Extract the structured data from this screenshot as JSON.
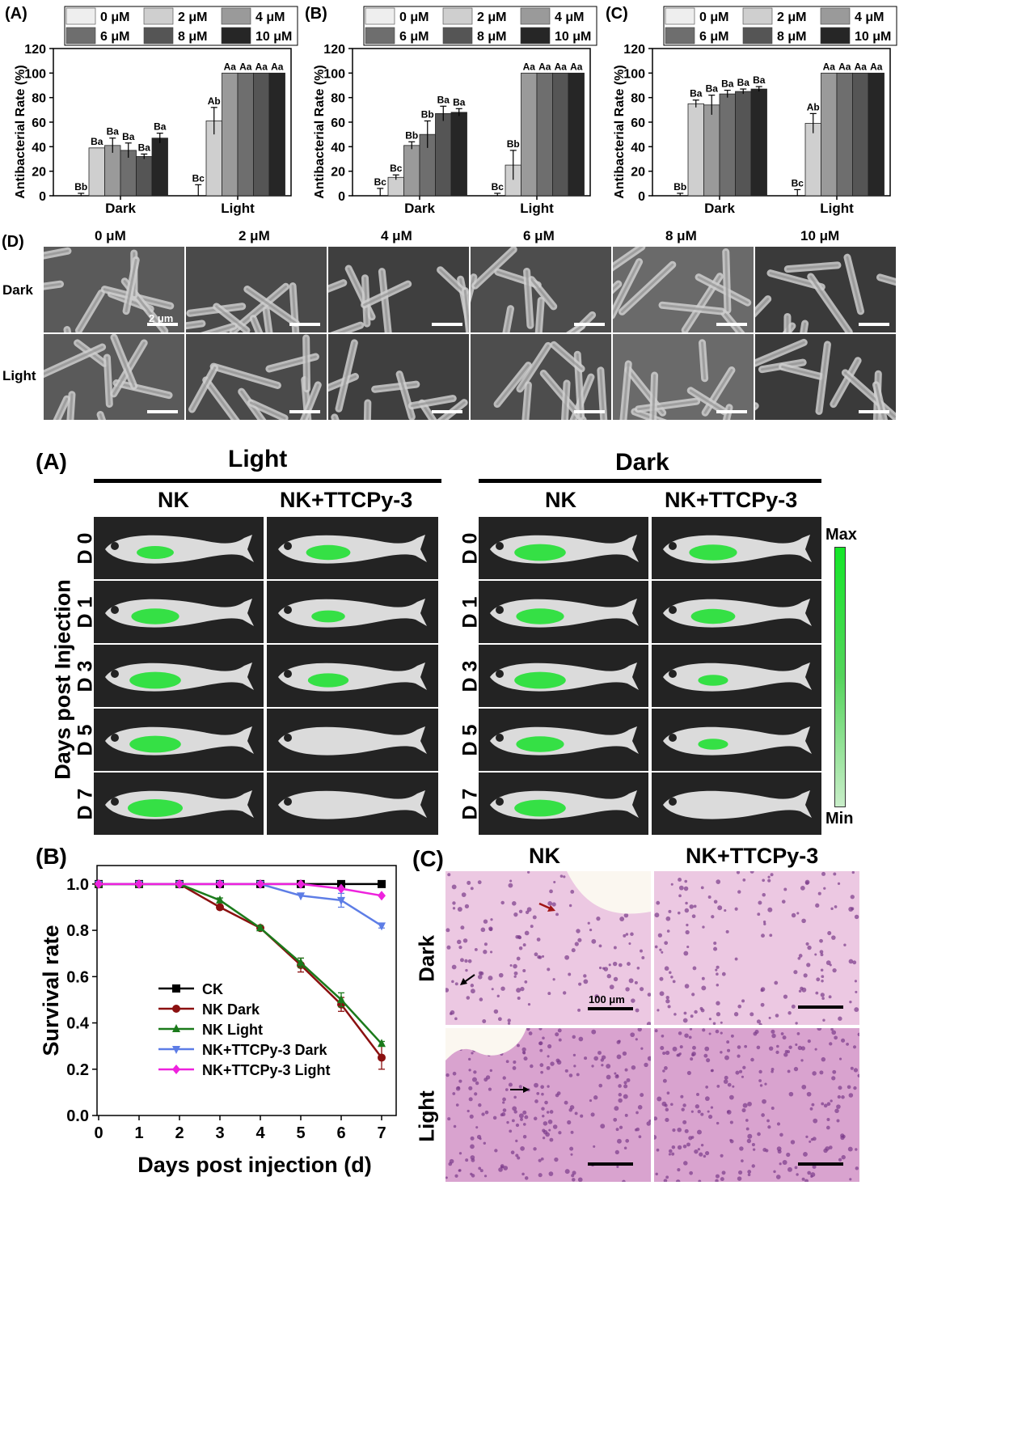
{
  "figure1": {
    "panels": [
      {
        "letter": "(A)"
      },
      {
        "letter": "(B)"
      },
      {
        "letter": "(C)"
      }
    ],
    "legend": [
      "0 μM",
      "2 μM",
      "4 μM",
      "6 μM",
      "8 μM",
      "10 μM"
    ],
    "sem": {
      "letter": "(D)",
      "columns": [
        "0 μM",
        "2 μM",
        "4 μM",
        "6 μM",
        "8 μM",
        "10 μM"
      ],
      "rows": [
        "Dark",
        "Light"
      ],
      "scale_label": "2 μm"
    }
  },
  "figure2": {
    "fish": {
      "letter": "(A)",
      "groups": [
        "Light",
        "Dark"
      ],
      "columns": [
        "NK",
        "NK+TTCPy-3",
        "NK",
        "NK+TTCPy-3"
      ],
      "rows": [
        "D 0",
        "D 1",
        "D 3",
        "D 5",
        "D 7"
      ],
      "ylabel": "Days post Injection",
      "colorbar_max": "Max",
      "colorbar_min": "Min",
      "color": "#18e02a"
    },
    "histo": {
      "letter": "(C)",
      "columns": [
        "NK",
        "NK+TTCPy-3"
      ],
      "rows": [
        "Dark",
        "Light"
      ],
      "scale_label": "100 μm"
    }
  },
  "chart_data": [
    {
      "type": "bar",
      "panel": "(A)",
      "categories": [
        "Dark",
        "Light"
      ],
      "ylabel": "Antibacterial Rate (%)",
      "ylim": [
        0,
        120
      ],
      "yticks": [
        0,
        20,
        40,
        60,
        80,
        100,
        120
      ],
      "legend_position": "top",
      "series": [
        {
          "name": "0 μM",
          "values": [
            0,
            0
          ],
          "errors": [
            2,
            9
          ],
          "labels": [
            "Bb",
            "Bc"
          ],
          "color": "#eeeeee"
        },
        {
          "name": "2 μM",
          "values": [
            39,
            61
          ],
          "errors": [
            0,
            11
          ],
          "labels": [
            "Ba",
            "Ab"
          ],
          "color": "#cfcfcf"
        },
        {
          "name": "4 μM",
          "values": [
            41,
            100
          ],
          "errors": [
            6,
            0
          ],
          "labels": [
            "Ba",
            "Aa"
          ],
          "color": "#9a9a9a"
        },
        {
          "name": "6 μM",
          "values": [
            37,
            100
          ],
          "errors": [
            6,
            0
          ],
          "labels": [
            "Ba",
            "Aa"
          ],
          "color": "#6e6e6e"
        },
        {
          "name": "8 μM",
          "values": [
            32,
            100
          ],
          "errors": [
            2,
            0
          ],
          "labels": [
            "Ba",
            "Aa"
          ],
          "color": "#555555"
        },
        {
          "name": "10 μM",
          "values": [
            47,
            100
          ],
          "errors": [
            4,
            0
          ],
          "labels": [
            "Ba",
            "Aa"
          ],
          "color": "#262626"
        }
      ]
    },
    {
      "type": "bar",
      "panel": "(B)",
      "categories": [
        "Dark",
        "Light"
      ],
      "ylabel": "Antibacterial Rate (%)",
      "ylim": [
        0,
        120
      ],
      "yticks": [
        0,
        20,
        40,
        60,
        80,
        100,
        120
      ],
      "legend_position": "top",
      "series": [
        {
          "name": "0 μM",
          "values": [
            0,
            0
          ],
          "errors": [
            6,
            2
          ],
          "labels": [
            "Bc",
            "Bc"
          ],
          "color": "#eeeeee"
        },
        {
          "name": "2 μM",
          "values": [
            15,
            25
          ],
          "errors": [
            2,
            12
          ],
          "labels": [
            "Bc",
            "Bb"
          ],
          "color": "#cfcfcf"
        },
        {
          "name": "4 μM",
          "values": [
            41,
            100
          ],
          "errors": [
            3,
            0
          ],
          "labels": [
            "Bb",
            "Aa"
          ],
          "color": "#9a9a9a"
        },
        {
          "name": "6 μM",
          "values": [
            50,
            100
          ],
          "errors": [
            11,
            0
          ],
          "labels": [
            "Bb",
            "Aa"
          ],
          "color": "#6e6e6e"
        },
        {
          "name": "8 μM",
          "values": [
            67,
            100
          ],
          "errors": [
            6,
            0
          ],
          "labels": [
            "Ba",
            "Aa"
          ],
          "color": "#555555"
        },
        {
          "name": "10 μM",
          "values": [
            68,
            100
          ],
          "errors": [
            3,
            0
          ],
          "labels": [
            "Ba",
            "Aa"
          ],
          "color": "#262626"
        }
      ]
    },
    {
      "type": "bar",
      "panel": "(C)",
      "categories": [
        "Dark",
        "Light"
      ],
      "ylabel": "Antibacterial Rate (%)",
      "ylim": [
        0,
        120
      ],
      "yticks": [
        0,
        20,
        40,
        60,
        80,
        100,
        120
      ],
      "legend_position": "top",
      "series": [
        {
          "name": "0 μM",
          "values": [
            0,
            0
          ],
          "errors": [
            2,
            5
          ],
          "labels": [
            "Bb",
            "Bc"
          ],
          "color": "#eeeeee"
        },
        {
          "name": "2 μM",
          "values": [
            75,
            59
          ],
          "errors": [
            3,
            8
          ],
          "labels": [
            "Ba",
            "Ab"
          ],
          "color": "#cfcfcf"
        },
        {
          "name": "4 μM",
          "values": [
            74,
            100
          ],
          "errors": [
            8,
            0
          ],
          "labels": [
            "Ba",
            "Aa"
          ],
          "color": "#9a9a9a"
        },
        {
          "name": "6 μM",
          "values": [
            83,
            100
          ],
          "errors": [
            3,
            0
          ],
          "labels": [
            "Ba",
            "Aa"
          ],
          "color": "#6e6e6e"
        },
        {
          "name": "8 μM",
          "values": [
            85,
            100
          ],
          "errors": [
            2,
            0
          ],
          "labels": [
            "Ba",
            "Aa"
          ],
          "color": "#555555"
        },
        {
          "name": "10 μM",
          "values": [
            87,
            100
          ],
          "errors": [
            2,
            0
          ],
          "labels": [
            "Ba",
            "Aa"
          ],
          "color": "#262626"
        }
      ]
    },
    {
      "type": "line",
      "panel": "(B)",
      "xlabel": "Days post injection (d)",
      "ylabel": "Survival rate",
      "x": [
        0,
        1,
        2,
        3,
        4,
        5,
        6,
        7
      ],
      "xlim": [
        0,
        7.4
      ],
      "ylim": [
        0,
        1.08
      ],
      "yticks": [
        "0.0",
        "0.2",
        "0.4",
        "0.6",
        "0.8",
        "1.0"
      ],
      "legend_position": "bottom-left",
      "series": [
        {
          "name": "CK",
          "values": [
            1,
            1,
            1,
            1,
            1,
            1,
            1,
            1
          ],
          "errors": [
            0,
            0,
            0,
            0,
            0,
            0,
            0,
            0
          ],
          "color": "#000000",
          "marker": "square"
        },
        {
          "name": "NK Dark",
          "values": [
            1,
            1,
            1,
            0.9,
            0.81,
            0.65,
            0.48,
            0.25
          ],
          "errors": [
            0,
            0,
            0,
            0.01,
            0.01,
            0.03,
            0.03,
            0.05
          ],
          "color": "#8b1010",
          "marker": "circle"
        },
        {
          "name": "NK Light",
          "values": [
            1,
            1,
            1,
            0.93,
            0.81,
            0.66,
            0.5,
            0.31
          ],
          "errors": [
            0,
            0,
            0,
            0.01,
            0.01,
            0.02,
            0.03,
            0.01
          ],
          "color": "#1b7a1b",
          "marker": "triangle"
        },
        {
          "name": "NK+TTCPy-3 Dark",
          "values": [
            1,
            1,
            1,
            1,
            1,
            0.95,
            0.93,
            0.82
          ],
          "errors": [
            0,
            0,
            0,
            0,
            0,
            0,
            0.03,
            0.01
          ],
          "color": "#5d7de6",
          "marker": "triangle-down"
        },
        {
          "name": "NK+TTCPy-3 Light",
          "values": [
            1,
            1,
            1,
            1,
            1,
            1,
            0.98,
            0.95
          ],
          "errors": [
            0,
            0,
            0,
            0,
            0,
            0,
            0,
            0
          ],
          "color": "#ee22dd",
          "marker": "diamond"
        }
      ]
    }
  ]
}
